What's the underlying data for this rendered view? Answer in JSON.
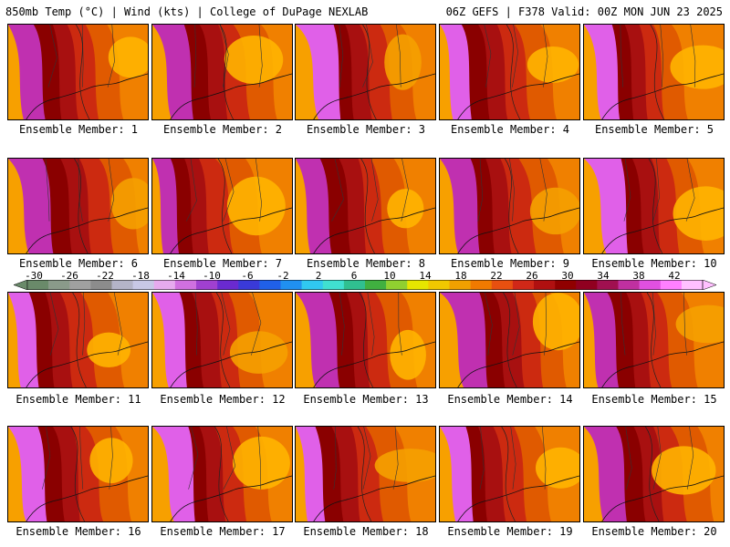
{
  "header": {
    "left": "850mb Temp (°C) | Wind (kts) | College of DuPage NEXLAB",
    "right": "06Z GEFS | F378 Valid: 00Z MON JUN 23 2025"
  },
  "members": [
    {
      "label": "Ensemble Member: 1"
    },
    {
      "label": "Ensemble Member: 2"
    },
    {
      "label": "Ensemble Member: 3"
    },
    {
      "label": "Ensemble Member: 4"
    },
    {
      "label": "Ensemble Member: 5"
    },
    {
      "label": "Ensemble Member: 6"
    },
    {
      "label": "Ensemble Member: 7"
    },
    {
      "label": "Ensemble Member: 8"
    },
    {
      "label": "Ensemble Member: 9"
    },
    {
      "label": "Ensemble Member: 10"
    },
    {
      "label": "Ensemble Member: 11"
    },
    {
      "label": "Ensemble Member: 12"
    },
    {
      "label": "Ensemble Member: 13"
    },
    {
      "label": "Ensemble Member: 14"
    },
    {
      "label": "Ensemble Member: 15"
    },
    {
      "label": "Ensemble Member: 16"
    },
    {
      "label": "Ensemble Member: 17"
    },
    {
      "label": "Ensemble Member: 18"
    },
    {
      "label": "Ensemble Member: 19"
    },
    {
      "label": "Ensemble Member: 20"
    }
  ],
  "colorbar": {
    "ticks": [
      "-30",
      "-26",
      "-22",
      "-18",
      "-14",
      "-10",
      "-6",
      "-2",
      "2",
      "6",
      "10",
      "14",
      "18",
      "22",
      "26",
      "30",
      "34",
      "38",
      "42"
    ],
    "colors": [
      "#6a8a6a",
      "#8a9a8a",
      "#a0a0a0",
      "#8c8c8c",
      "#b4b4c8",
      "#c8c8e6",
      "#e6aaee",
      "#d070e0",
      "#a040d0",
      "#6a2ad0",
      "#3a3ad8",
      "#2060e8",
      "#2090f0",
      "#30c8f0",
      "#40e0d0",
      "#30c090",
      "#40b040",
      "#90d030",
      "#e6e600",
      "#f0c800",
      "#f0a000",
      "#f07a00",
      "#e85010",
      "#d02818",
      "#b01010",
      "#900000",
      "#900020",
      "#a01050",
      "#c030a0",
      "#e050e0",
      "#ff80ff",
      "#ffc0ff"
    ]
  }
}
